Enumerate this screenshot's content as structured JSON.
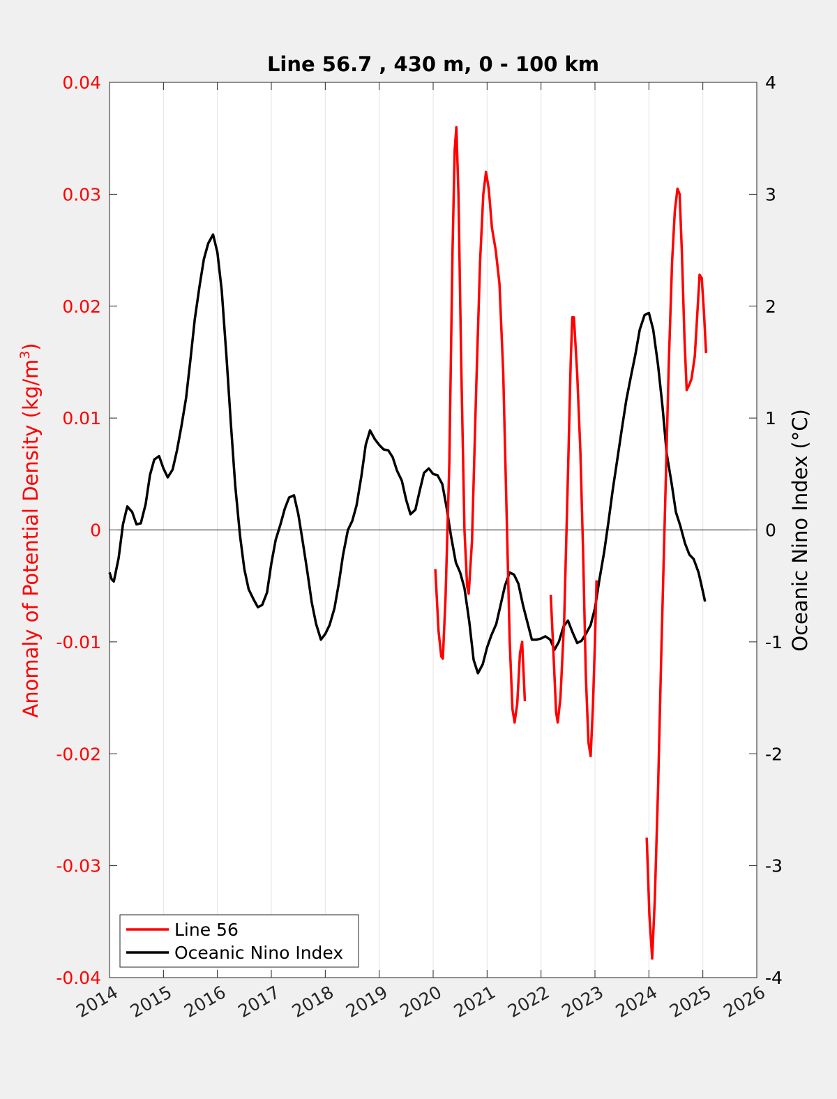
{
  "chart_data": {
    "type": "line",
    "title": "Line 56.7 , 430 m, 0 - 100 km",
    "xlim": [
      2014,
      2026
    ],
    "xticks": [
      "2014",
      "2015",
      "2016",
      "2017",
      "2018",
      "2019",
      "2020",
      "2021",
      "2022",
      "2023",
      "2024",
      "2025",
      "2026"
    ],
    "y_left": {
      "label": "Anomaly of Potential Density (kg/m",
      "label_sup": "3",
      "label_end": ")",
      "lim": [
        -0.04,
        0.04
      ],
      "ticks": [
        "0.04",
        "0.03",
        "0.02",
        "0.01",
        "0",
        "-0.01",
        "-0.02",
        "-0.03",
        "-0.04"
      ],
      "color": "#ff0000"
    },
    "y_right": {
      "label": "Oceanic Nino Index (°C)",
      "lim": [
        -4,
        4
      ],
      "ticks": [
        "4",
        "3",
        "2",
        "1",
        "0",
        "-1",
        "-2",
        "-3",
        "-4"
      ],
      "color": "#000000"
    },
    "grid_x": true,
    "zero_line": true,
    "legend_position": "bottom-left",
    "series": [
      {
        "name": "Line 56",
        "color": "#ff0000",
        "axis": "left",
        "segments": [
          [
            [
              2020.04,
              -0.0035
            ],
            [
              2020.1,
              -0.009
            ],
            [
              2020.15,
              -0.0113
            ],
            [
              2020.18,
              -0.0115
            ],
            [
              2020.23,
              -0.006
            ],
            [
              2020.3,
              0.006
            ],
            [
              2020.36,
              0.025
            ],
            [
              2020.4,
              0.034
            ],
            [
              2020.43,
              0.036
            ],
            [
              2020.47,
              0.03
            ],
            [
              2020.52,
              0.015
            ],
            [
              2020.58,
              0.0
            ],
            [
              2020.63,
              -0.005
            ],
            [
              2020.66,
              -0.0057
            ],
            [
              2020.72,
              -0.001
            ],
            [
              2020.8,
              0.013
            ],
            [
              2020.87,
              0.024
            ],
            [
              2020.93,
              0.03
            ],
            [
              2020.98,
              0.032
            ],
            [
              2021.03,
              0.0305
            ],
            [
              2021.09,
              0.027
            ],
            [
              2021.16,
              0.025
            ],
            [
              2021.23,
              0.022
            ],
            [
              2021.3,
              0.014
            ],
            [
              2021.37,
              0.0
            ],
            [
              2021.42,
              -0.01
            ],
            [
              2021.47,
              -0.016
            ],
            [
              2021.51,
              -0.0172
            ],
            [
              2021.56,
              -0.0155
            ],
            [
              2021.61,
              -0.011
            ],
            [
              2021.65,
              -0.01
            ],
            [
              2021.7,
              -0.0153
            ]
          ],
          [
            [
              2022.18,
              -0.0058
            ],
            [
              2022.24,
              -0.012
            ],
            [
              2022.28,
              -0.0163
            ],
            [
              2022.31,
              -0.0172
            ],
            [
              2022.36,
              -0.015
            ],
            [
              2022.43,
              -0.008
            ],
            [
              2022.5,
              0.005
            ],
            [
              2022.55,
              0.015
            ],
            [
              2022.58,
              0.019
            ],
            [
              2022.61,
              0.019
            ],
            [
              2022.67,
              0.014
            ],
            [
              2022.73,
              0.007
            ],
            [
              2022.78,
              -0.002
            ],
            [
              2022.83,
              -0.013
            ],
            [
              2022.88,
              -0.019
            ],
            [
              2022.92,
              -0.0202
            ],
            [
              2022.96,
              -0.016
            ],
            [
              2023.0,
              -0.01
            ],
            [
              2023.03,
              -0.0045
            ]
          ],
          [
            [
              2023.96,
              -0.0275
            ],
            [
              2024.01,
              -0.0345
            ],
            [
              2024.06,
              -0.0383
            ],
            [
              2024.11,
              -0.033
            ],
            [
              2024.17,
              -0.023
            ],
            [
              2024.23,
              -0.011
            ],
            [
              2024.3,
              0.002
            ],
            [
              2024.37,
              0.015
            ],
            [
              2024.43,
              0.024
            ],
            [
              2024.48,
              0.0285
            ],
            [
              2024.53,
              0.0305
            ],
            [
              2024.57,
              0.03
            ],
            [
              2024.61,
              0.025
            ],
            [
              2024.66,
              0.017
            ],
            [
              2024.7,
              0.0125
            ],
            [
              2024.75,
              0.013
            ],
            [
              2024.79,
              0.0135
            ],
            [
              2024.85,
              0.0155
            ],
            [
              2024.9,
              0.0195
            ],
            [
              2024.94,
              0.0228
            ],
            [
              2024.98,
              0.0225
            ],
            [
              2025.02,
              0.0195
            ],
            [
              2025.06,
              0.0158
            ]
          ]
        ]
      },
      {
        "name": "Oceanic Nino Index",
        "color": "#000000",
        "axis": "right",
        "segments": [
          [
            [
              2014.0,
              -0.38
            ],
            [
              2014.04,
              -0.44
            ],
            [
              2014.08,
              -0.46
            ],
            [
              2014.17,
              -0.25
            ],
            [
              2014.25,
              0.05
            ],
            [
              2014.33,
              0.21
            ],
            [
              2014.42,
              0.16
            ],
            [
              2014.5,
              0.05
            ],
            [
              2014.58,
              0.06
            ],
            [
              2014.67,
              0.23
            ],
            [
              2014.75,
              0.49
            ],
            [
              2014.83,
              0.63
            ],
            [
              2014.92,
              0.66
            ],
            [
              2015.0,
              0.55
            ],
            [
              2015.08,
              0.47
            ],
            [
              2015.17,
              0.54
            ],
            [
              2015.25,
              0.71
            ],
            [
              2015.33,
              0.92
            ],
            [
              2015.42,
              1.18
            ],
            [
              2015.5,
              1.52
            ],
            [
              2015.58,
              1.88
            ],
            [
              2015.67,
              2.18
            ],
            [
              2015.75,
              2.42
            ],
            [
              2015.83,
              2.56
            ],
            [
              2015.92,
              2.64
            ],
            [
              2016.0,
              2.48
            ],
            [
              2016.08,
              2.14
            ],
            [
              2016.17,
              1.54
            ],
            [
              2016.25,
              0.95
            ],
            [
              2016.33,
              0.4
            ],
            [
              2016.42,
              -0.05
            ],
            [
              2016.5,
              -0.35
            ],
            [
              2016.58,
              -0.53
            ],
            [
              2016.67,
              -0.62
            ],
            [
              2016.75,
              -0.69
            ],
            [
              2016.83,
              -0.67
            ],
            [
              2016.92,
              -0.56
            ],
            [
              2017.0,
              -0.3
            ],
            [
              2017.08,
              -0.09
            ],
            [
              2017.17,
              0.05
            ],
            [
              2017.25,
              0.19
            ],
            [
              2017.33,
              0.29
            ],
            [
              2017.42,
              0.31
            ],
            [
              2017.5,
              0.14
            ],
            [
              2017.58,
              -0.1
            ],
            [
              2017.67,
              -0.38
            ],
            [
              2017.75,
              -0.65
            ],
            [
              2017.83,
              -0.84
            ],
            [
              2017.92,
              -0.98
            ],
            [
              2018.0,
              -0.93
            ],
            [
              2018.08,
              -0.85
            ],
            [
              2018.17,
              -0.7
            ],
            [
              2018.25,
              -0.48
            ],
            [
              2018.33,
              -0.22
            ],
            [
              2018.42,
              0.0
            ],
            [
              2018.5,
              0.08
            ],
            [
              2018.58,
              0.22
            ],
            [
              2018.67,
              0.48
            ],
            [
              2018.75,
              0.76
            ],
            [
              2018.83,
              0.89
            ],
            [
              2018.92,
              0.81
            ],
            [
              2019.0,
              0.76
            ],
            [
              2019.08,
              0.72
            ],
            [
              2019.17,
              0.71
            ],
            [
              2019.25,
              0.65
            ],
            [
              2019.33,
              0.53
            ],
            [
              2019.42,
              0.44
            ],
            [
              2019.5,
              0.27
            ],
            [
              2019.58,
              0.14
            ],
            [
              2019.67,
              0.18
            ],
            [
              2019.75,
              0.35
            ],
            [
              2019.83,
              0.51
            ],
            [
              2019.92,
              0.55
            ],
            [
              2020.0,
              0.5
            ],
            [
              2020.08,
              0.49
            ],
            [
              2020.17,
              0.41
            ],
            [
              2020.25,
              0.2
            ],
            [
              2020.33,
              -0.05
            ],
            [
              2020.42,
              -0.29
            ],
            [
              2020.5,
              -0.38
            ],
            [
              2020.58,
              -0.52
            ],
            [
              2020.67,
              -0.82
            ],
            [
              2020.75,
              -1.16
            ],
            [
              2020.83,
              -1.28
            ],
            [
              2020.92,
              -1.2
            ],
            [
              2021.0,
              -1.05
            ],
            [
              2021.08,
              -0.94
            ],
            [
              2021.17,
              -0.84
            ],
            [
              2021.25,
              -0.67
            ],
            [
              2021.33,
              -0.5
            ],
            [
              2021.42,
              -0.38
            ],
            [
              2021.5,
              -0.4
            ],
            [
              2021.58,
              -0.48
            ],
            [
              2021.67,
              -0.68
            ],
            [
              2021.75,
              -0.83
            ],
            [
              2021.83,
              -0.98
            ],
            [
              2021.92,
              -0.98
            ],
            [
              2022.0,
              -0.97
            ],
            [
              2022.08,
              -0.95
            ],
            [
              2022.17,
              -0.98
            ],
            [
              2022.25,
              -1.07
            ],
            [
              2022.33,
              -1.0
            ],
            [
              2022.42,
              -0.86
            ],
            [
              2022.5,
              -0.81
            ],
            [
              2022.58,
              -0.91
            ],
            [
              2022.67,
              -1.01
            ],
            [
              2022.75,
              -0.99
            ],
            [
              2022.83,
              -0.93
            ],
            [
              2022.92,
              -0.85
            ],
            [
              2023.0,
              -0.7
            ],
            [
              2023.08,
              -0.45
            ],
            [
              2023.17,
              -0.2
            ],
            [
              2023.25,
              0.07
            ],
            [
              2023.33,
              0.36
            ],
            [
              2023.42,
              0.65
            ],
            [
              2023.5,
              0.91
            ],
            [
              2023.58,
              1.16
            ],
            [
              2023.67,
              1.38
            ],
            [
              2023.75,
              1.57
            ],
            [
              2023.83,
              1.79
            ],
            [
              2023.92,
              1.92
            ],
            [
              2024.0,
              1.94
            ],
            [
              2024.08,
              1.79
            ],
            [
              2024.17,
              1.47
            ],
            [
              2024.25,
              1.11
            ],
            [
              2024.33,
              0.68
            ],
            [
              2024.42,
              0.42
            ],
            [
              2024.5,
              0.16
            ],
            [
              2024.58,
              0.04
            ],
            [
              2024.67,
              -0.12
            ],
            [
              2024.75,
              -0.22
            ],
            [
              2024.83,
              -0.26
            ],
            [
              2024.92,
              -0.38
            ],
            [
              2025.0,
              -0.55
            ],
            [
              2025.04,
              -0.64
            ]
          ]
        ]
      }
    ]
  }
}
